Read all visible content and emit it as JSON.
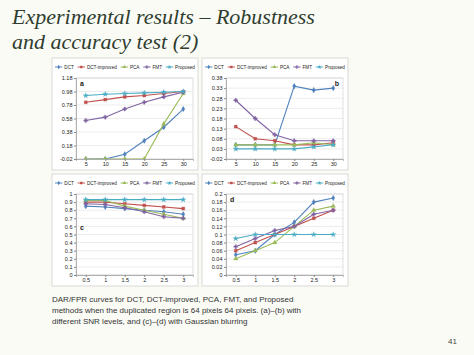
{
  "slide": {
    "title_lines": [
      "Experimental results – Robustness",
      "and accuracy test (2)"
    ],
    "caption_lines": [
      "DAR/FPR curves for DCT, DCT-improved, PCA, FMT, and Proposed",
      "methods when the duplicated region is 64 pixels  64 pixels. (a)–(b) with",
      "different SNR levels, and (c)–(d) with Gaussian blurring"
    ],
    "page_number": "41"
  },
  "chart_data": [
    {
      "type": "line",
      "title": "a",
      "legend": "top",
      "grid": true,
      "categories": [
        "5",
        "10",
        "15",
        "20",
        "25",
        "30"
      ],
      "ylim": [
        -0.02,
        1.18
      ],
      "yticks": [
        -0.02,
        0.18,
        0.38,
        0.58,
        0.78,
        0.98,
        1.18
      ],
      "series": [
        {
          "name": "DCT",
          "color": "#4f81bd",
          "marker": "diamond",
          "values": [
            -0.02,
            -0.02,
            0.05,
            0.25,
            0.45,
            0.72
          ]
        },
        {
          "name": "DCT-improved",
          "color": "#c0504d",
          "marker": "square",
          "values": [
            0.82,
            0.86,
            0.9,
            0.92,
            0.95,
            0.98
          ]
        },
        {
          "name": "PCA",
          "color": "#9bbb59",
          "marker": "triangle",
          "values": [
            -0.02,
            -0.02,
            -0.02,
            -0.02,
            0.5,
            0.95
          ]
        },
        {
          "name": "FMT",
          "color": "#8064a2",
          "marker": "cross",
          "values": [
            0.55,
            0.6,
            0.72,
            0.82,
            0.9,
            0.97
          ]
        },
        {
          "name": "Proposed",
          "color": "#4bacc6",
          "marker": "star",
          "values": [
            0.92,
            0.94,
            0.95,
            0.96,
            0.97,
            0.98
          ]
        }
      ]
    },
    {
      "type": "line",
      "title": "b",
      "legend": "top",
      "grid": true,
      "categories": [
        "5",
        "10",
        "15",
        "20",
        "25",
        "30"
      ],
      "ylim": [
        -0.02,
        0.38
      ],
      "yticks": [
        -0.02,
        0.03,
        0.08,
        0.13,
        0.18,
        0.23,
        0.28,
        0.33,
        0.38
      ],
      "series": [
        {
          "name": "DCT",
          "color": "#4f81bd",
          "marker": "diamond",
          "values": [
            0.05,
            0.05,
            0.05,
            0.34,
            0.32,
            0.33
          ]
        },
        {
          "name": "DCT-improved",
          "color": "#c0504d",
          "marker": "square",
          "values": [
            0.14,
            0.08,
            0.07,
            0.05,
            0.05,
            0.06
          ]
        },
        {
          "name": "PCA",
          "color": "#9bbb59",
          "marker": "triangle",
          "values": [
            0.05,
            0.05,
            0.05,
            0.05,
            0.06,
            0.05
          ]
        },
        {
          "name": "FMT",
          "color": "#8064a2",
          "marker": "cross",
          "values": [
            0.27,
            0.18,
            0.1,
            0.07,
            0.07,
            0.07
          ]
        },
        {
          "name": "Proposed",
          "color": "#4bacc6",
          "marker": "star",
          "values": [
            0.03,
            0.03,
            0.03,
            0.03,
            0.04,
            0.05
          ]
        }
      ]
    },
    {
      "type": "line",
      "title": "c",
      "legend": "top",
      "grid": true,
      "categories": [
        "0.5",
        "1",
        "1.5",
        "2",
        "2.5",
        "3"
      ],
      "ylim": [
        0,
        1
      ],
      "yticks": [
        0,
        0.1,
        0.2,
        0.3,
        0.4,
        0.5,
        0.6,
        0.7,
        0.8,
        0.9,
        1
      ],
      "series": [
        {
          "name": "DCT",
          "color": "#4f81bd",
          "marker": "diamond",
          "values": [
            0.85,
            0.84,
            0.82,
            0.8,
            0.78,
            0.75
          ]
        },
        {
          "name": "DCT-improved",
          "color": "#c0504d",
          "marker": "square",
          "values": [
            0.9,
            0.9,
            0.88,
            0.86,
            0.84,
            0.82
          ]
        },
        {
          "name": "PCA",
          "color": "#9bbb59",
          "marker": "triangle",
          "values": [
            0.92,
            0.92,
            0.85,
            0.8,
            0.75,
            0.7
          ]
        },
        {
          "name": "FMT",
          "color": "#8064a2",
          "marker": "cross",
          "values": [
            0.88,
            0.87,
            0.83,
            0.78,
            0.72,
            0.7
          ]
        },
        {
          "name": "Proposed",
          "color": "#4bacc6",
          "marker": "star",
          "values": [
            0.93,
            0.93,
            0.93,
            0.93,
            0.93,
            0.93
          ]
        }
      ]
    },
    {
      "type": "line",
      "title": "d",
      "legend": "top",
      "grid": true,
      "categories": [
        "0.5",
        "1",
        "1.5",
        "2",
        "2.5",
        "3"
      ],
      "ylim": [
        0,
        0.2
      ],
      "yticks": [
        0,
        0.02,
        0.04,
        0.06,
        0.08,
        0.1,
        0.12,
        0.14,
        0.16,
        0.18,
        0.2
      ],
      "series": [
        {
          "name": "DCT",
          "color": "#4f81bd",
          "marker": "diamond",
          "values": [
            0.05,
            0.06,
            0.1,
            0.13,
            0.18,
            0.19
          ]
        },
        {
          "name": "DCT-improved",
          "color": "#c0504d",
          "marker": "square",
          "values": [
            0.06,
            0.08,
            0.1,
            0.12,
            0.14,
            0.16
          ]
        },
        {
          "name": "PCA",
          "color": "#9bbb59",
          "marker": "triangle",
          "values": [
            0.04,
            0.06,
            0.08,
            0.12,
            0.16,
            0.17
          ]
        },
        {
          "name": "FMT",
          "color": "#8064a2",
          "marker": "cross",
          "values": [
            0.07,
            0.09,
            0.11,
            0.12,
            0.15,
            0.16
          ]
        },
        {
          "name": "Proposed",
          "color": "#4bacc6",
          "marker": "star",
          "values": [
            0.09,
            0.1,
            0.1,
            0.1,
            0.1,
            0.1
          ]
        }
      ]
    }
  ]
}
